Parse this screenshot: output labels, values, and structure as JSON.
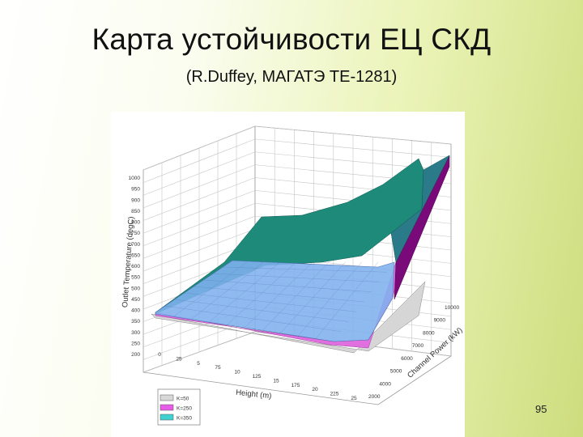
{
  "slide": {
    "title": "Карта устойчивости ЕЦ СКД",
    "subtitle": "(R.Duffey, МАГАТЭ ТЕ-1281)",
    "page_number": "95"
  },
  "chart_data": {
    "type": "surface",
    "zlabel": "Outlet Temperature (degC)",
    "xlabel": "Height (m)",
    "ylabel": "Channel Power (kW)",
    "z_ticks": [
      "1000",
      "950",
      "900",
      "850",
      "800",
      "750",
      "700",
      "650",
      "600",
      "550",
      "500",
      "450",
      "400",
      "350",
      "300",
      "250",
      "200"
    ],
    "x_ticks": [
      "0",
      "25",
      "5",
      "75",
      "10",
      "125",
      "15",
      "175",
      "20",
      "225",
      "25"
    ],
    "y_ticks": [
      "2000",
      "4000",
      "5000",
      "6000",
      "7000",
      "8000",
      "9000",
      "10000"
    ],
    "x_range": [
      0,
      25
    ],
    "y_range": [
      2000,
      10000
    ],
    "z_range": [
      200,
      1000
    ],
    "grid": true,
    "legend_position": "bottom-left",
    "series": [
      {
        "name": "K=50",
        "color": "#d8d8d8"
      },
      {
        "name": "K=250",
        "color": "#e65ce6"
      },
      {
        "name": "K=350",
        "color": "#3fd0d0"
      }
    ]
  }
}
